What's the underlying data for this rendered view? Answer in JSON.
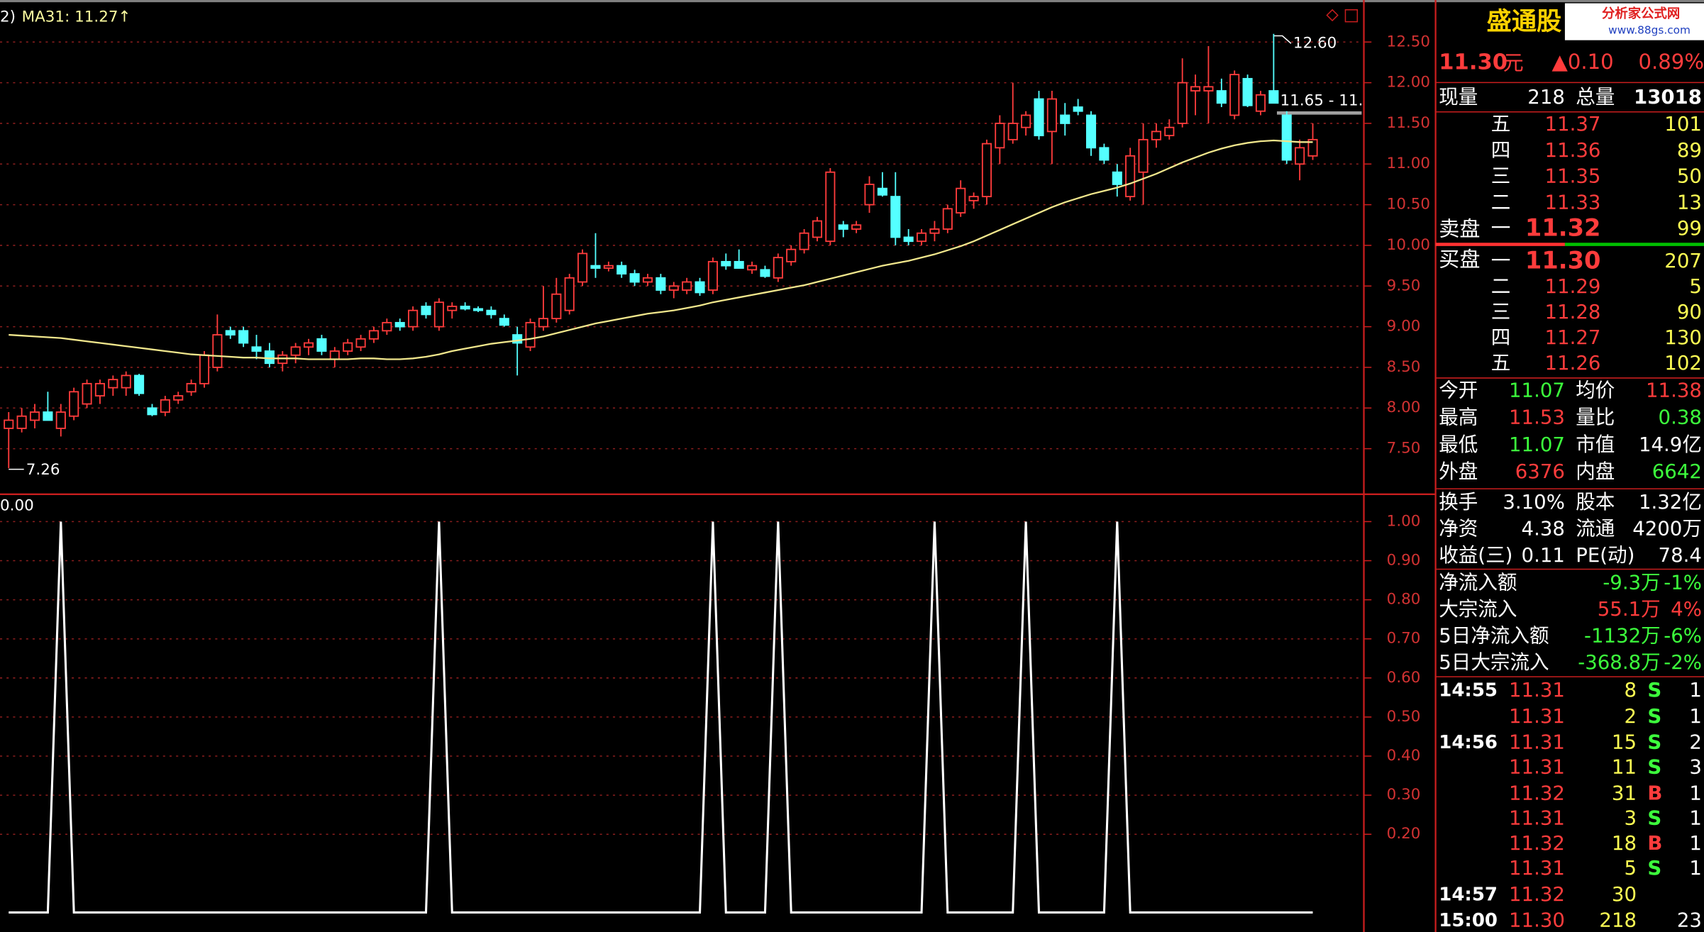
{
  "chart_data": [
    {
      "type": "candlestick",
      "up_color": "#ff3c3c",
      "down_color": "#54ffff",
      "grid": true,
      "ylim": [
        6.98,
        12.95
      ],
      "yticks": [
        {
          "value": 7.5,
          "label": "7.50"
        },
        {
          "value": 8,
          "label": "8.00"
        },
        {
          "value": 8.5,
          "label": "8.50"
        },
        {
          "value": 9,
          "label": "9.00"
        },
        {
          "value": 9.5,
          "label": "9.50"
        },
        {
          "value": 10,
          "label": "10.00"
        },
        {
          "value": 10.5,
          "label": "10.50"
        },
        {
          "value": 11,
          "label": "11.00"
        },
        {
          "value": 11.5,
          "label": "11.50"
        },
        {
          "value": 12,
          "label": "12.00"
        },
        {
          "value": 12.5,
          "label": "12.50"
        }
      ],
      "ohlc": [
        [
          7.75,
          7.95,
          7.26,
          7.85
        ],
        [
          7.75,
          8.0,
          7.7,
          7.9
        ],
        [
          7.85,
          8.05,
          7.75,
          7.95
        ],
        [
          7.95,
          8.2,
          7.85,
          7.85
        ],
        [
          7.75,
          8.05,
          7.65,
          7.95
        ],
        [
          7.9,
          8.25,
          7.85,
          8.2
        ],
        [
          8.05,
          8.35,
          8.0,
          8.3
        ],
        [
          8.15,
          8.35,
          8.05,
          8.3
        ],
        [
          8.25,
          8.4,
          8.15,
          8.35
        ],
        [
          8.25,
          8.45,
          8.15,
          8.4
        ],
        [
          8.4,
          8.42,
          8.15,
          8.18
        ],
        [
          8.0,
          8.05,
          7.9,
          7.92
        ],
        [
          7.95,
          8.15,
          7.9,
          8.1
        ],
        [
          8.1,
          8.2,
          8.05,
          8.15
        ],
        [
          8.2,
          8.35,
          8.15,
          8.3
        ],
        [
          8.3,
          8.7,
          8.25,
          8.65
        ],
        [
          8.5,
          9.15,
          8.45,
          8.9
        ],
        [
          8.95,
          9.0,
          8.85,
          8.9
        ],
        [
          8.95,
          9.0,
          8.75,
          8.8
        ],
        [
          8.75,
          8.9,
          8.6,
          8.7
        ],
        [
          8.7,
          8.8,
          8.5,
          8.55
        ],
        [
          8.55,
          8.7,
          8.45,
          8.65
        ],
        [
          8.65,
          8.8,
          8.55,
          8.75
        ],
        [
          8.75,
          8.85,
          8.65,
          8.8
        ],
        [
          8.85,
          8.9,
          8.65,
          8.7
        ],
        [
          8.6,
          8.75,
          8.5,
          8.7
        ],
        [
          8.7,
          8.85,
          8.65,
          8.8
        ],
        [
          8.75,
          8.9,
          8.7,
          8.85
        ],
        [
          8.85,
          9.0,
          8.8,
          8.95
        ],
        [
          8.95,
          9.1,
          8.9,
          9.05
        ],
        [
          9.05,
          9.1,
          8.95,
          9.0
        ],
        [
          9.0,
          9.25,
          8.95,
          9.2
        ],
        [
          9.25,
          9.3,
          9.1,
          9.15
        ],
        [
          9.0,
          9.35,
          8.95,
          9.3
        ],
        [
          9.2,
          9.3,
          9.1,
          9.25
        ],
        [
          9.25,
          9.3,
          9.2,
          9.22
        ],
        [
          9.22,
          9.25,
          9.18,
          9.2
        ],
        [
          9.2,
          9.25,
          9.1,
          9.15
        ],
        [
          9.1,
          9.15,
          9.0,
          9.02
        ],
        [
          8.9,
          9.0,
          8.4,
          8.8
        ],
        [
          8.75,
          9.1,
          8.7,
          9.05
        ],
        [
          9.0,
          9.5,
          8.95,
          9.1
        ],
        [
          9.1,
          9.6,
          9.05,
          9.4
        ],
        [
          9.2,
          9.65,
          9.15,
          9.6
        ],
        [
          9.55,
          9.95,
          9.5,
          9.9
        ],
        [
          9.75,
          10.15,
          9.6,
          9.72
        ],
        [
          9.72,
          9.8,
          9.68,
          9.75
        ],
        [
          9.75,
          9.8,
          9.6,
          9.65
        ],
        [
          9.65,
          9.7,
          9.5,
          9.55
        ],
        [
          9.55,
          9.65,
          9.5,
          9.6
        ],
        [
          9.6,
          9.65,
          9.4,
          9.45
        ],
        [
          9.45,
          9.55,
          9.35,
          9.5
        ],
        [
          9.45,
          9.6,
          9.4,
          9.55
        ],
        [
          9.55,
          9.6,
          9.38,
          9.42
        ],
        [
          9.45,
          9.85,
          9.4,
          9.8
        ],
        [
          9.8,
          9.9,
          9.7,
          9.75
        ],
        [
          9.8,
          9.95,
          9.75,
          9.72
        ],
        [
          9.7,
          9.8,
          9.65,
          9.75
        ],
        [
          9.7,
          9.75,
          9.6,
          9.62
        ],
        [
          9.6,
          9.9,
          9.55,
          9.85
        ],
        [
          9.8,
          10.0,
          9.75,
          9.95
        ],
        [
          9.95,
          10.2,
          9.9,
          10.15
        ],
        [
          10.1,
          10.35,
          10.05,
          10.3
        ],
        [
          10.05,
          10.95,
          10.0,
          10.9
        ],
        [
          10.25,
          10.3,
          10.1,
          10.2
        ],
        [
          10.2,
          10.3,
          10.15,
          10.25
        ],
        [
          10.5,
          10.85,
          10.4,
          10.75
        ],
        [
          10.7,
          10.9,
          10.6,
          10.62
        ],
        [
          10.6,
          10.9,
          10.0,
          10.1
        ],
        [
          10.1,
          10.2,
          10.0,
          10.05
        ],
        [
          10.05,
          10.2,
          10.0,
          10.15
        ],
        [
          10.15,
          10.3,
          10.05,
          10.2
        ],
        [
          10.2,
          10.5,
          10.15,
          10.45
        ],
        [
          10.4,
          10.8,
          10.35,
          10.7
        ],
        [
          10.55,
          10.65,
          10.45,
          10.6
        ],
        [
          10.6,
          11.3,
          10.5,
          11.25
        ],
        [
          11.2,
          11.6,
          11.0,
          11.5
        ],
        [
          11.3,
          12.0,
          11.25,
          11.5
        ],
        [
          11.45,
          11.65,
          11.35,
          11.6
        ],
        [
          11.8,
          11.9,
          11.3,
          11.35
        ],
        [
          11.4,
          11.9,
          11.0,
          11.8
        ],
        [
          11.6,
          11.75,
          11.35,
          11.5
        ],
        [
          11.7,
          11.8,
          11.6,
          11.65
        ],
        [
          11.6,
          11.65,
          11.1,
          11.2
        ],
        [
          11.2,
          11.25,
          11.0,
          11.05
        ],
        [
          10.9,
          11.0,
          10.6,
          10.75
        ],
        [
          10.6,
          11.2,
          10.55,
          11.1
        ],
        [
          10.9,
          11.5,
          10.5,
          11.3
        ],
        [
          11.3,
          11.5,
          11.2,
          11.4
        ],
        [
          11.35,
          11.55,
          11.3,
          11.45
        ],
        [
          11.5,
          12.3,
          11.45,
          12.0
        ],
        [
          11.9,
          12.1,
          11.6,
          11.95
        ],
        [
          11.9,
          12.45,
          11.5,
          11.95
        ],
        [
          11.9,
          12.05,
          11.7,
          11.75
        ],
        [
          11.6,
          12.15,
          11.55,
          12.1
        ],
        [
          12.05,
          12.1,
          11.7,
          11.72
        ],
        [
          11.65,
          11.9,
          11.6,
          11.85
        ],
        [
          11.9,
          12.6,
          11.75,
          11.75
        ],
        [
          11.6,
          11.65,
          11.0,
          11.05
        ],
        [
          11.0,
          11.3,
          10.8,
          11.2
        ],
        [
          11.1,
          11.5,
          11.05,
          11.3
        ]
      ],
      "ma": {
        "color": "#f0e68c",
        "values": [
          8.9,
          8.89,
          8.88,
          8.87,
          8.86,
          8.84,
          8.82,
          8.8,
          8.78,
          8.76,
          8.74,
          8.72,
          8.7,
          8.68,
          8.66,
          8.65,
          8.64,
          8.63,
          8.62,
          8.62,
          8.61,
          8.61,
          8.61,
          8.6,
          8.6,
          8.6,
          8.6,
          8.61,
          8.61,
          8.6,
          8.6,
          8.61,
          8.63,
          8.66,
          8.7,
          8.73,
          8.76,
          8.79,
          8.81,
          8.83,
          8.85,
          8.88,
          8.92,
          8.96,
          9.0,
          9.04,
          9.07,
          9.1,
          9.13,
          9.16,
          9.18,
          9.2,
          9.23,
          9.26,
          9.3,
          9.33,
          9.36,
          9.39,
          9.42,
          9.45,
          9.48,
          9.51,
          9.55,
          9.59,
          9.63,
          9.67,
          9.71,
          9.75,
          9.78,
          9.81,
          9.85,
          9.89,
          9.94,
          9.99,
          10.05,
          10.12,
          10.19,
          10.26,
          10.33,
          10.4,
          10.47,
          10.53,
          10.58,
          10.63,
          10.67,
          10.71,
          10.76,
          10.82,
          10.88,
          10.95,
          11.02,
          11.08,
          11.14,
          11.19,
          11.23,
          11.26,
          11.28,
          11.29,
          11.28,
          11.27,
          11.27
        ]
      },
      "annotations": {
        "corner": "2)",
        "ma_label": "MA31: 11.27↑",
        "high": "12.60",
        "low": "7.26",
        "range": "11.65 - 11."
      }
    },
    {
      "type": "line",
      "color": "#ffffff",
      "grid": true,
      "ylim": [
        0,
        1.07
      ],
      "yticks": [
        {
          "value": 0.2,
          "label": "0.20"
        },
        {
          "value": 0.3,
          "label": "0.30"
        },
        {
          "value": 0.4,
          "label": "0.40"
        },
        {
          "value": 0.5,
          "label": "0.50"
        },
        {
          "value": 0.6,
          "label": "0.60"
        },
        {
          "value": 0.7,
          "label": "0.70"
        },
        {
          "value": 0.8,
          "label": "0.80"
        },
        {
          "value": 0.9,
          "label": "0.90"
        },
        {
          "value": 1,
          "label": "1.00"
        }
      ],
      "values": [
        0,
        0,
        0,
        0,
        1,
        0,
        0,
        0,
        0,
        0,
        0,
        0,
        0,
        0,
        0,
        0,
        0,
        0,
        0,
        0,
        0,
        0,
        0,
        0,
        0,
        0,
        0,
        0,
        0,
        0,
        0,
        0,
        0,
        1,
        0,
        0,
        0,
        0,
        0,
        0,
        0,
        0,
        0,
        0,
        0,
        0,
        0,
        0,
        0,
        0,
        0,
        0,
        0,
        0,
        1,
        0,
        0,
        0,
        0,
        1,
        0,
        0,
        0,
        0,
        0,
        0,
        0,
        0,
        0,
        0,
        0,
        1,
        0,
        0,
        0,
        0,
        0,
        0,
        1,
        0,
        0,
        0,
        0,
        0,
        0,
        1,
        0,
        0,
        0,
        0,
        0,
        0,
        0,
        0,
        0,
        0,
        0,
        0,
        0,
        0,
        0
      ],
      "label": "0.00"
    }
  ],
  "quote": {
    "name": "盛通股",
    "logo": "分析家公式网",
    "logo_url": "www.88gs.com",
    "price": "11.30",
    "unit": "元",
    "change": "▲0.10",
    "change_pct": "0.89%",
    "volume_row": [
      "现量",
      "218",
      "总量",
      "13018"
    ],
    "sell_label": "卖盘",
    "buy_label": "买盘",
    "asks": [
      [
        "五",
        "11.37",
        "101"
      ],
      [
        "四",
        "11.36",
        "89"
      ],
      [
        "三",
        "11.35",
        "50"
      ],
      [
        "二",
        "11.33",
        "13"
      ],
      [
        "一",
        "11.32",
        "99"
      ]
    ],
    "bids": [
      [
        "一",
        "11.30",
        "207"
      ],
      [
        "二",
        "11.29",
        "5"
      ],
      [
        "三",
        "11.28",
        "90"
      ],
      [
        "四",
        "11.27",
        "130"
      ],
      [
        "五",
        "11.26",
        "102"
      ]
    ],
    "stats": [
      [
        "今开",
        "11.07",
        "均价",
        "11.38"
      ],
      [
        "最高",
        "11.53",
        "量比",
        "0.38"
      ],
      [
        "最低",
        "11.07",
        "市值",
        "14.9亿"
      ],
      [
        "外盘",
        "6376",
        "内盘",
        "6642"
      ]
    ],
    "fundamentals": [
      [
        "换手",
        "3.10%",
        "股本",
        "1.32亿"
      ],
      [
        "净资",
        "4.38",
        "流通",
        "4200万"
      ],
      [
        "收益(三)",
        "0.11",
        "PE(动)",
        "78.4"
      ]
    ],
    "flows": [
      [
        "净流入额",
        "-9.3万",
        "-1%"
      ],
      [
        "大宗流入",
        "55.1万",
        "4%"
      ],
      [
        "5日净流入额",
        "-1132万",
        "-6%"
      ],
      [
        "5日大宗流入",
        "-368.8万",
        "-2%"
      ]
    ],
    "trades": [
      [
        "14:55",
        "11.31",
        "8",
        "S",
        "1"
      ],
      [
        null,
        "11.31",
        "2",
        "S",
        "1"
      ],
      [
        "14:56",
        "11.31",
        "15",
        "S",
        "2"
      ],
      [
        null,
        "11.31",
        "11",
        "S",
        "3"
      ],
      [
        null,
        "11.32",
        "31",
        "B",
        "1"
      ],
      [
        null,
        "11.31",
        "3",
        "S",
        "1"
      ],
      [
        null,
        "11.32",
        "18",
        "B",
        "1"
      ],
      [
        null,
        "11.31",
        "5",
        "S",
        "1"
      ],
      [
        "14:57",
        "11.32",
        "30"
      ],
      [
        "15:00",
        "11.30",
        "218",
        "23"
      ]
    ]
  }
}
